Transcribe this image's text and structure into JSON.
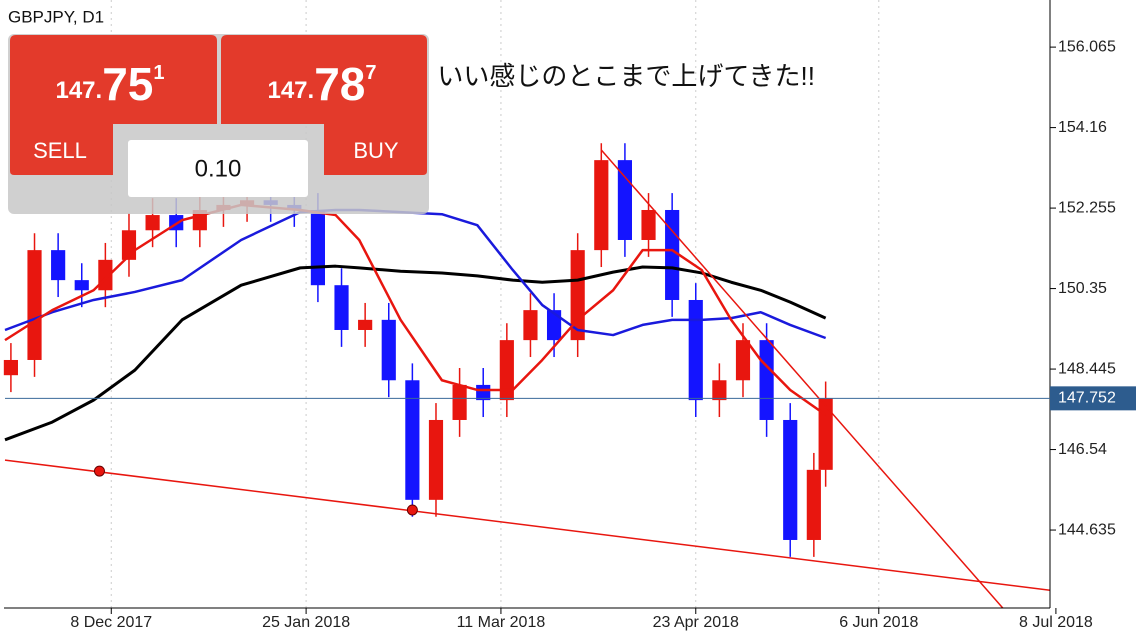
{
  "header": {
    "symbol": "GBPJPY, D1"
  },
  "annotation": "いい感じのとこまで上げてきた!!",
  "trade_panel": {
    "sell": {
      "price_prefix": "147.",
      "price_main": "75",
      "price_sup": "1",
      "label": "SELL"
    },
    "buy": {
      "price_prefix": "147.",
      "price_main": "78",
      "price_sup": "7",
      "label": "BUY"
    },
    "volume": "0.10"
  },
  "chart_data": {
    "type": "candlestick",
    "xlim": [
      0,
      177
    ],
    "ylim": [
      142.79,
      157.18
    ],
    "grid": true,
    "xticks": [
      {
        "value": 18,
        "label": "8 Dec 2017"
      },
      {
        "value": 51,
        "label": "25 Jan 2018"
      },
      {
        "value": 84,
        "label": "11 Mar 2018"
      },
      {
        "value": 117,
        "label": "23 Apr 2018"
      },
      {
        "value": 148,
        "label": "6 Jun 2018"
      },
      {
        "value": 178,
        "label": "8 Jul 2018"
      }
    ],
    "yticks": [
      156.065,
      154.16,
      152.255,
      150.35,
      148.445,
      146.54,
      144.635
    ],
    "current_price": 147.752,
    "candles": {
      "up_color": "#e8160f",
      "down_color": "#1414ff",
      "x": [
        1,
        5,
        9,
        13,
        17,
        21,
        25,
        29,
        33,
        37,
        41,
        45,
        49,
        53,
        57,
        61,
        65,
        69,
        73,
        77,
        81,
        85,
        89,
        93,
        97,
        101,
        105,
        109,
        113,
        117,
        121,
        125,
        129,
        133,
        137,
        139
      ],
      "open": [
        148.3,
        148.66,
        151.26,
        150.55,
        150.31,
        151.03,
        151.73,
        152.09,
        151.73,
        152.21,
        152.33,
        152.44,
        152.33,
        152.21,
        150.43,
        149.37,
        149.61,
        148.18,
        145.35,
        147.24,
        148.07,
        147.71,
        149.13,
        149.84,
        149.13,
        151.26,
        153.39,
        151.5,
        152.21,
        150.08,
        147.71,
        148.18,
        149.13,
        147.24,
        144.4,
        146.06
      ],
      "high": [
        149.06,
        151.66,
        151.66,
        150.95,
        151.43,
        152.13,
        152.49,
        152.49,
        152.61,
        152.73,
        152.84,
        152.84,
        152.73,
        152.61,
        150.83,
        150.01,
        150.01,
        148.58,
        147.64,
        148.47,
        148.47,
        149.53,
        150.24,
        150.24,
        151.66,
        153.79,
        153.79,
        152.61,
        152.61,
        150.48,
        148.58,
        149.53,
        149.53,
        147.64,
        146.46,
        148.15
      ],
      "low": [
        147.9,
        148.26,
        150.15,
        149.91,
        149.91,
        150.63,
        151.33,
        151.33,
        151.33,
        151.81,
        151.93,
        151.93,
        151.81,
        150.03,
        148.97,
        148.97,
        147.78,
        144.95,
        144.95,
        146.84,
        147.31,
        147.31,
        148.73,
        148.73,
        148.73,
        150.86,
        151.1,
        151.1,
        149.68,
        147.31,
        147.31,
        147.78,
        146.84,
        144.0,
        144.0,
        145.66
      ],
      "close": [
        148.66,
        151.26,
        150.55,
        150.31,
        151.03,
        151.73,
        152.09,
        151.73,
        152.21,
        152.33,
        152.44,
        152.33,
        152.21,
        150.43,
        149.37,
        149.61,
        148.18,
        145.35,
        147.24,
        148.07,
        147.71,
        149.13,
        149.84,
        149.13,
        151.26,
        153.39,
        151.5,
        152.21,
        150.08,
        147.71,
        148.18,
        149.13,
        147.24,
        144.4,
        146.06,
        147.75
      ]
    },
    "series": [
      {
        "color": "#000000",
        "width": 3,
        "x": [
          0,
          8,
          15,
          22,
          30,
          40,
          50,
          56,
          60,
          67,
          74,
          80,
          86,
          91,
          97,
          103,
          108,
          113,
          118,
          123,
          128,
          133,
          139
        ],
        "values": [
          146.77,
          147.19,
          147.71,
          148.42,
          149.61,
          150.43,
          150.84,
          150.88,
          150.84,
          150.76,
          150.72,
          150.65,
          150.55,
          150.5,
          150.55,
          150.74,
          150.86,
          150.84,
          150.72,
          150.5,
          150.31,
          150.03,
          149.65
        ]
      },
      {
        "color": "#1a1adc",
        "width": 2.5,
        "x": [
          0,
          8,
          15,
          22,
          30,
          40,
          50,
          56,
          60,
          67,
          74,
          80,
          86,
          91,
          97,
          103,
          108,
          113,
          118,
          123,
          128,
          133,
          139
        ],
        "values": [
          149.37,
          149.79,
          150.08,
          150.27,
          150.55,
          151.5,
          152.16,
          152.21,
          152.21,
          152.16,
          152.11,
          151.85,
          150.79,
          149.96,
          149.37,
          149.25,
          149.49,
          149.61,
          149.61,
          149.65,
          149.79,
          149.49,
          149.18
        ]
      },
      {
        "color": "#e8160f",
        "width": 2.5,
        "x": [
          0,
          8,
          15,
          22,
          30,
          40,
          50,
          56,
          60,
          67,
          74,
          80,
          86,
          91,
          97,
          103,
          108,
          113,
          118,
          123,
          128,
          133,
          139
        ],
        "values": [
          149.13,
          149.84,
          150.31,
          151.26,
          151.97,
          152.33,
          152.21,
          152.09,
          151.5,
          149.61,
          148.18,
          147.95,
          147.95,
          148.66,
          149.61,
          150.31,
          151.26,
          151.26,
          150.79,
          149.61,
          148.66,
          147.95,
          147.36
        ]
      }
    ],
    "trend_lines": [
      {
        "color": "#e8160f",
        "x": [
          0,
          177
        ],
        "values": [
          146.29,
          143.21
        ]
      },
      {
        "color": "#e8160f",
        "x": [
          101,
          169
        ],
        "values": [
          153.63,
          142.79
        ]
      }
    ],
    "markers": {
      "color": "#e8160f",
      "x": [
        16,
        69
      ],
      "values": [
        146.03,
        145.11
      ]
    }
  }
}
